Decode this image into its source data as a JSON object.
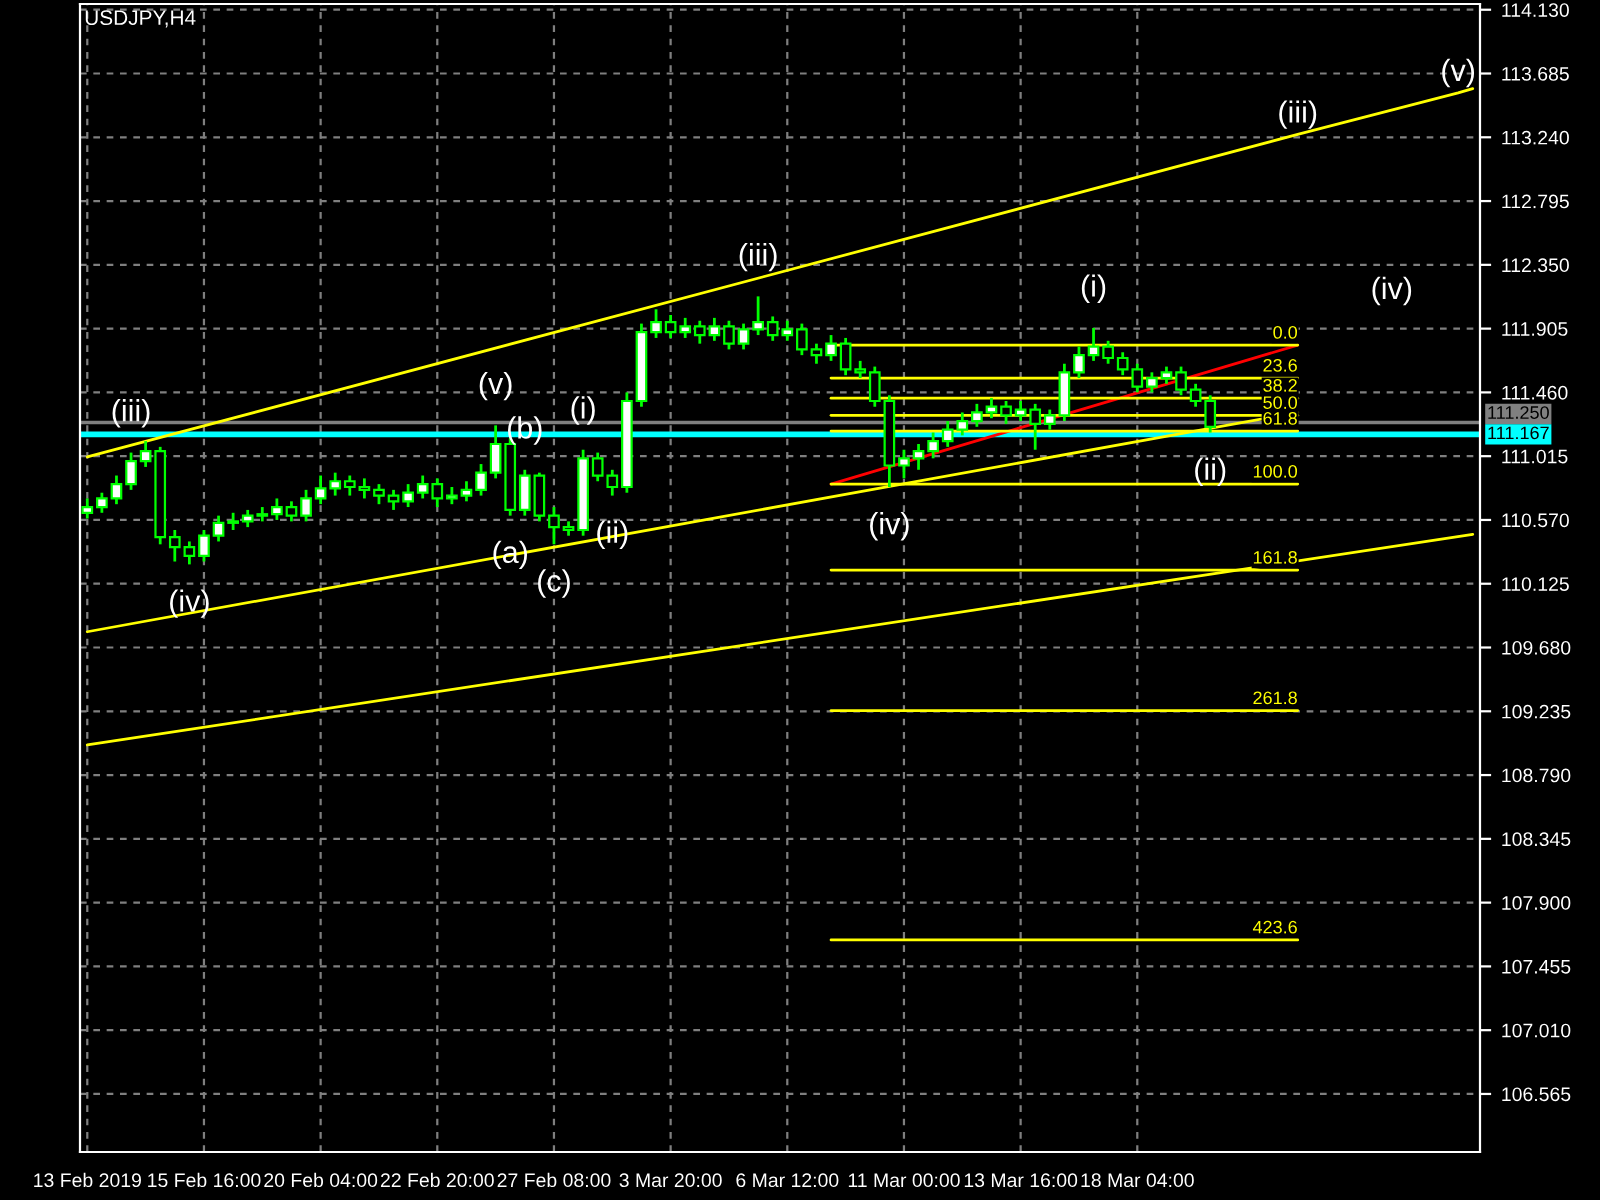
{
  "chart_data": {
    "type": "candlestick",
    "title": "USDJPY,H4",
    "categories": [
      "13 Feb 2019",
      null,
      null,
      null,
      null,
      null,
      null,
      null,
      "15 Feb 16:00",
      null,
      null,
      null,
      null,
      null,
      null,
      null,
      "20 Feb 04:00",
      null,
      null,
      null,
      null,
      null,
      null,
      null,
      "22 Feb 20:00",
      null,
      null,
      null,
      null,
      null,
      null,
      null,
      "27 Feb 08:00",
      null,
      null,
      null,
      null,
      null,
      null,
      null,
      "3 Mar 20:00",
      null,
      null,
      null,
      null,
      null,
      null,
      null,
      "6 Mar 12:00",
      null,
      null,
      null,
      null,
      null,
      null,
      null,
      "11 Mar 00:00",
      null,
      null,
      null,
      null,
      null,
      null,
      null,
      "13 Mar 16:00",
      null,
      null,
      null,
      null,
      null,
      null,
      null,
      "18 Mar 04:00",
      null,
      null,
      null,
      null,
      null,
      null,
      null,
      null,
      null,
      null,
      null,
      null,
      null,
      null,
      null,
      null,
      null,
      null,
      null,
      null,
      null,
      null,
      null
    ],
    "ohlc": [
      [
        110.62,
        110.72,
        110.58,
        110.66
      ],
      [
        110.66,
        110.76,
        110.62,
        110.72
      ],
      [
        110.72,
        110.88,
        110.68,
        110.82
      ],
      [
        110.82,
        111.04,
        110.78,
        110.98
      ],
      [
        110.98,
        111.12,
        110.94,
        111.05
      ],
      [
        111.05,
        111.08,
        110.4,
        110.45
      ],
      [
        110.45,
        110.5,
        110.28,
        110.38
      ],
      [
        110.38,
        110.42,
        110.26,
        110.32
      ],
      [
        110.32,
        110.5,
        110.28,
        110.46
      ],
      [
        110.46,
        110.6,
        110.42,
        110.55
      ],
      [
        110.55,
        110.62,
        110.5,
        110.56
      ],
      [
        110.56,
        110.64,
        110.52,
        110.6
      ],
      [
        110.6,
        110.66,
        110.56,
        110.61
      ],
      [
        110.61,
        110.72,
        110.57,
        110.66
      ],
      [
        110.66,
        110.7,
        110.56,
        110.6
      ],
      [
        110.6,
        110.78,
        110.56,
        110.72
      ],
      [
        110.72,
        110.88,
        110.68,
        110.79
      ],
      [
        110.79,
        110.9,
        110.74,
        110.84
      ],
      [
        110.84,
        110.88,
        110.74,
        110.8
      ],
      [
        110.8,
        110.86,
        110.72,
        110.78
      ],
      [
        110.78,
        110.82,
        110.68,
        110.74
      ],
      [
        110.74,
        110.78,
        110.64,
        110.7
      ],
      [
        110.7,
        110.82,
        110.66,
        110.76
      ],
      [
        110.76,
        110.88,
        110.72,
        110.82
      ],
      [
        110.82,
        110.86,
        110.66,
        110.72
      ],
      [
        110.72,
        110.8,
        110.68,
        110.74
      ],
      [
        110.74,
        110.84,
        110.7,
        110.78
      ],
      [
        110.78,
        110.96,
        110.74,
        110.9
      ],
      [
        110.9,
        111.23,
        110.86,
        111.1
      ],
      [
        111.1,
        111.14,
        110.6,
        110.64
      ],
      [
        110.64,
        110.92,
        110.6,
        110.88
      ],
      [
        110.88,
        110.9,
        110.56,
        110.6
      ],
      [
        110.6,
        110.66,
        110.4,
        110.52
      ],
      [
        110.52,
        110.56,
        110.46,
        110.5
      ],
      [
        110.5,
        111.06,
        110.46,
        111.0
      ],
      [
        111.0,
        111.04,
        110.84,
        110.88
      ],
      [
        110.88,
        110.92,
        110.74,
        110.8
      ],
      [
        110.8,
        111.46,
        110.76,
        111.4
      ],
      [
        111.4,
        111.94,
        111.36,
        111.88
      ],
      [
        111.88,
        112.04,
        111.84,
        111.95
      ],
      [
        111.95,
        112.0,
        111.84,
        111.88
      ],
      [
        111.88,
        111.98,
        111.84,
        111.92
      ],
      [
        111.92,
        111.96,
        111.8,
        111.86
      ],
      [
        111.86,
        111.98,
        111.82,
        111.92
      ],
      [
        111.92,
        111.96,
        111.76,
        111.8
      ],
      [
        111.8,
        111.94,
        111.76,
        111.9
      ],
      [
        111.9,
        112.13,
        111.86,
        111.95
      ],
      [
        111.95,
        111.99,
        111.82,
        111.86
      ],
      [
        111.86,
        111.96,
        111.82,
        111.9
      ],
      [
        111.9,
        111.94,
        111.72,
        111.76
      ],
      [
        111.76,
        111.8,
        111.66,
        111.72
      ],
      [
        111.72,
        111.86,
        111.68,
        111.8
      ],
      [
        111.8,
        111.84,
        111.58,
        111.62
      ],
      [
        111.62,
        111.68,
        111.56,
        111.6
      ],
      [
        111.6,
        111.64,
        111.36,
        111.4
      ],
      [
        111.4,
        111.44,
        110.8,
        110.95
      ],
      [
        110.95,
        111.06,
        110.86,
        111.0
      ],
      [
        111.0,
        111.1,
        110.92,
        111.05
      ],
      [
        111.05,
        111.18,
        111.0,
        111.12
      ],
      [
        111.12,
        111.26,
        111.08,
        111.2
      ],
      [
        111.2,
        111.32,
        111.16,
        111.26
      ],
      [
        111.26,
        111.38,
        111.22,
        111.32
      ],
      [
        111.32,
        111.42,
        111.28,
        111.36
      ],
      [
        111.36,
        111.4,
        111.24,
        111.3
      ],
      [
        111.3,
        111.4,
        111.26,
        111.34
      ],
      [
        111.34,
        111.38,
        111.06,
        111.24
      ],
      [
        111.24,
        111.34,
        111.2,
        111.3
      ],
      [
        111.3,
        111.66,
        111.26,
        111.6
      ],
      [
        111.6,
        111.78,
        111.56,
        111.72
      ],
      [
        111.72,
        111.91,
        111.68,
        111.78
      ],
      [
        111.78,
        111.82,
        111.66,
        111.7
      ],
      [
        111.7,
        111.74,
        111.58,
        111.62
      ],
      [
        111.62,
        111.66,
        111.46,
        111.5
      ],
      [
        111.5,
        111.6,
        111.46,
        111.56
      ],
      [
        111.56,
        111.64,
        111.52,
        111.6
      ],
      [
        111.6,
        111.64,
        111.44,
        111.48
      ],
      [
        111.48,
        111.52,
        111.36,
        111.4
      ],
      [
        111.4,
        111.44,
        111.18,
        111.22
      ],
      null,
      null,
      null,
      null,
      null,
      null,
      null,
      null,
      null,
      null,
      null,
      null,
      null,
      null,
      null,
      null,
      null,
      null
    ],
    "value_labels": [
      null,
      null,
      null,
      "(iii)",
      null,
      null,
      null,
      "(iv)",
      null,
      null,
      null,
      null,
      null,
      null,
      null,
      null,
      null,
      null,
      null,
      null,
      null,
      null,
      null,
      null,
      null,
      null,
      null,
      null,
      "(v)",
      "(a)",
      "(b)",
      null,
      "(c)",
      null,
      "(i)",
      null,
      "(ii)",
      null,
      null,
      null,
      null,
      null,
      null,
      null,
      null,
      null,
      "(iii)",
      null,
      null,
      null,
      null,
      null,
      null,
      null,
      null,
      "(iv)",
      null,
      null,
      null,
      null,
      null,
      null,
      null,
      null,
      null,
      null,
      null,
      null,
      null,
      "(i)",
      null,
      null,
      null,
      null,
      null,
      null,
      null,
      "(ii)",
      null,
      null,
      null,
      null,
      null,
      null,
      null,
      null,
      null,
      null,
      null,
      null,
      null,
      null,
      null,
      null,
      null,
      null
    ],
    "series": [
      {
        "type": "line",
        "color": "#ffff00",
        "values": [
          111.01,
          null,
          null,
          null,
          null,
          null,
          null,
          null,
          null,
          null,
          null,
          null,
          null,
          null,
          null,
          null,
          null,
          null,
          null,
          null,
          null,
          null,
          null,
          null,
          null,
          null,
          null,
          null,
          null,
          null,
          null,
          null,
          null,
          null,
          null,
          null,
          null,
          null,
          null,
          null,
          null,
          null,
          null,
          null,
          null,
          null,
          null,
          null,
          null,
          null,
          null,
          null,
          null,
          null,
          null,
          null,
          null,
          null,
          null,
          null,
          null,
          null,
          null,
          null,
          null,
          null,
          null,
          null,
          null,
          null,
          null,
          null,
          null,
          null,
          null,
          null,
          null,
          null,
          null,
          null,
          null,
          null,
          null,
          113.26,
          null,
          null,
          null,
          null,
          null,
          null,
          null,
          null,
          null,
          null,
          113.55,
          113.58
        ],
        "value_labels": [
          null,
          null,
          null,
          null,
          null,
          null,
          null,
          null,
          null,
          null,
          null,
          null,
          null,
          null,
          null,
          null,
          null,
          null,
          null,
          null,
          null,
          null,
          null,
          null,
          null,
          null,
          null,
          null,
          null,
          null,
          null,
          null,
          null,
          null,
          null,
          null,
          null,
          null,
          null,
          null,
          null,
          null,
          null,
          null,
          null,
          null,
          null,
          null,
          null,
          null,
          null,
          null,
          null,
          null,
          null,
          null,
          null,
          null,
          null,
          null,
          null,
          null,
          null,
          null,
          null,
          null,
          null,
          null,
          null,
          null,
          null,
          null,
          null,
          null,
          null,
          null,
          null,
          null,
          null,
          null,
          null,
          null,
          null,
          "(iii)",
          null,
          null,
          null,
          null,
          null,
          null,
          null,
          null,
          null,
          null,
          "(v)",
          null
        ]
      },
      {
        "type": "line",
        "color": "#ffff00",
        "values": [
          109.79,
          null,
          null,
          null,
          null,
          null,
          null,
          null,
          null,
          null,
          null,
          null,
          null,
          null,
          null,
          null,
          null,
          null,
          null,
          null,
          null,
          null,
          null,
          null,
          null,
          null,
          null,
          null,
          null,
          null,
          null,
          null,
          null,
          null,
          null,
          null,
          null,
          null,
          null,
          null,
          null,
          null,
          null,
          null,
          null,
          null,
          null,
          null,
          null,
          null,
          null,
          null,
          null,
          null,
          null,
          null,
          null,
          null,
          null,
          null,
          null,
          null,
          null,
          null,
          null,
          null,
          null,
          null,
          null,
          null,
          null,
          null,
          null,
          null,
          null,
          null,
          null,
          null,
          null,
          null,
          null,
          null,
          null,
          111.32,
          null,
          null,
          null,
          null,
          null,
          null,
          null,
          null,
          null,
          null,
          null,
          null
        ]
      },
      {
        "type": "line",
        "color": "#ffff00",
        "values": [
          109.0,
          null,
          null,
          null,
          null,
          null,
          null,
          null,
          null,
          null,
          null,
          null,
          null,
          null,
          null,
          null,
          null,
          null,
          null,
          null,
          null,
          null,
          null,
          null,
          null,
          null,
          null,
          null,
          null,
          null,
          null,
          null,
          null,
          null,
          null,
          null,
          null,
          null,
          null,
          null,
          null,
          null,
          null,
          null,
          null,
          null,
          null,
          null,
          null,
          null,
          null,
          null,
          null,
          null,
          null,
          null,
          null,
          null,
          null,
          null,
          null,
          null,
          null,
          null,
          null,
          null,
          null,
          null,
          null,
          null,
          null,
          null,
          null,
          null,
          null,
          null,
          null,
          null,
          null,
          null,
          null,
          null,
          null,
          null,
          null,
          null,
          null,
          null,
          null,
          null,
          null,
          null,
          null,
          null,
          null,
          110.47
        ]
      },
      {
        "type": "line",
        "color": "#ff0000",
        "values": [
          null,
          null,
          null,
          null,
          null,
          null,
          null,
          null,
          null,
          null,
          null,
          null,
          null,
          null,
          null,
          null,
          null,
          null,
          null,
          null,
          null,
          null,
          null,
          null,
          null,
          null,
          null,
          null,
          null,
          null,
          null,
          null,
          null,
          null,
          null,
          null,
          null,
          null,
          null,
          null,
          null,
          null,
          null,
          null,
          null,
          null,
          null,
          null,
          null,
          null,
          null,
          110.82,
          null,
          null,
          null,
          null,
          null,
          null,
          null,
          null,
          null,
          null,
          null,
          null,
          null,
          null,
          null,
          null,
          null,
          null,
          null,
          null,
          null,
          null,
          null,
          null,
          null,
          null,
          null,
          null,
          null,
          null,
          null,
          111.79,
          null,
          null,
          null,
          null,
          null,
          null,
          null,
          null,
          null,
          null,
          null,
          null
        ]
      },
      {
        "type": "line",
        "color": "#ffff00",
        "name": "0.0",
        "values": [
          null,
          null,
          null,
          null,
          null,
          null,
          null,
          null,
          null,
          null,
          null,
          null,
          null,
          null,
          null,
          null,
          null,
          null,
          null,
          null,
          null,
          null,
          null,
          null,
          null,
          null,
          null,
          null,
          null,
          null,
          null,
          null,
          null,
          null,
          null,
          null,
          null,
          null,
          null,
          null,
          null,
          null,
          null,
          null,
          null,
          null,
          null,
          null,
          null,
          null,
          null,
          111.79,
          null,
          null,
          null,
          null,
          null,
          null,
          null,
          null,
          null,
          null,
          null,
          null,
          null,
          null,
          null,
          null,
          null,
          null,
          null,
          null,
          null,
          null,
          null,
          null,
          null,
          null,
          null,
          null,
          null,
          null,
          null,
          111.79,
          null,
          null,
          null,
          null,
          null,
          null,
          null,
          null,
          null,
          null,
          null,
          null
        ]
      },
      {
        "type": "line",
        "color": "#ffff00",
        "name": "23.6",
        "values": [
          null,
          null,
          null,
          null,
          null,
          null,
          null,
          null,
          null,
          null,
          null,
          null,
          null,
          null,
          null,
          null,
          null,
          null,
          null,
          null,
          null,
          null,
          null,
          null,
          null,
          null,
          null,
          null,
          null,
          null,
          null,
          null,
          null,
          null,
          null,
          null,
          null,
          null,
          null,
          null,
          null,
          null,
          null,
          null,
          null,
          null,
          null,
          null,
          null,
          null,
          null,
          111.56,
          null,
          null,
          null,
          null,
          null,
          null,
          null,
          null,
          null,
          null,
          null,
          null,
          null,
          null,
          null,
          null,
          null,
          null,
          null,
          null,
          null,
          null,
          null,
          null,
          null,
          null,
          null,
          null,
          null,
          null,
          null,
          111.56,
          null,
          null,
          null,
          null,
          null,
          null,
          null,
          null,
          null,
          null,
          null,
          null
        ]
      },
      {
        "type": "line",
        "color": "#ffff00",
        "name": "38.2",
        "values": [
          null,
          null,
          null,
          null,
          null,
          null,
          null,
          null,
          null,
          null,
          null,
          null,
          null,
          null,
          null,
          null,
          null,
          null,
          null,
          null,
          null,
          null,
          null,
          null,
          null,
          null,
          null,
          null,
          null,
          null,
          null,
          null,
          null,
          null,
          null,
          null,
          null,
          null,
          null,
          null,
          null,
          null,
          null,
          null,
          null,
          null,
          null,
          null,
          null,
          null,
          null,
          111.42,
          null,
          null,
          null,
          null,
          null,
          null,
          null,
          null,
          null,
          null,
          null,
          null,
          null,
          null,
          null,
          null,
          null,
          null,
          null,
          null,
          null,
          null,
          null,
          null,
          null,
          null,
          null,
          null,
          null,
          null,
          null,
          111.42,
          null,
          null,
          null,
          null,
          null,
          null,
          null,
          null,
          null,
          null,
          null,
          null
        ]
      },
      {
        "type": "line",
        "color": "#ffff00",
        "name": "50.0",
        "values": [
          null,
          null,
          null,
          null,
          null,
          null,
          null,
          null,
          null,
          null,
          null,
          null,
          null,
          null,
          null,
          null,
          null,
          null,
          null,
          null,
          null,
          null,
          null,
          null,
          null,
          null,
          null,
          null,
          null,
          null,
          null,
          null,
          null,
          null,
          null,
          null,
          null,
          null,
          null,
          null,
          null,
          null,
          null,
          null,
          null,
          null,
          null,
          null,
          null,
          null,
          null,
          111.3,
          null,
          null,
          null,
          null,
          null,
          null,
          null,
          null,
          null,
          null,
          null,
          null,
          null,
          null,
          null,
          null,
          null,
          null,
          null,
          null,
          null,
          null,
          null,
          null,
          null,
          null,
          null,
          null,
          null,
          null,
          null,
          111.3,
          null,
          null,
          null,
          null,
          null,
          null,
          null,
          null,
          null,
          null,
          null,
          null
        ]
      },
      {
        "type": "line",
        "color": "#ffff00",
        "name": "61.8",
        "values": [
          null,
          null,
          null,
          null,
          null,
          null,
          null,
          null,
          null,
          null,
          null,
          null,
          null,
          null,
          null,
          null,
          null,
          null,
          null,
          null,
          null,
          null,
          null,
          null,
          null,
          null,
          null,
          null,
          null,
          null,
          null,
          null,
          null,
          null,
          null,
          null,
          null,
          null,
          null,
          null,
          null,
          null,
          null,
          null,
          null,
          null,
          null,
          null,
          null,
          null,
          null,
          111.19,
          null,
          null,
          null,
          null,
          null,
          null,
          null,
          null,
          null,
          null,
          null,
          null,
          null,
          null,
          null,
          null,
          null,
          null,
          null,
          null,
          null,
          null,
          null,
          null,
          null,
          null,
          null,
          null,
          null,
          null,
          null,
          111.19,
          null,
          null,
          null,
          null,
          null,
          null,
          null,
          null,
          null,
          null,
          null,
          null
        ]
      },
      {
        "type": "line",
        "color": "#ffff00",
        "name": "100.0",
        "values": [
          null,
          null,
          null,
          null,
          null,
          null,
          null,
          null,
          null,
          null,
          null,
          null,
          null,
          null,
          null,
          null,
          null,
          null,
          null,
          null,
          null,
          null,
          null,
          null,
          null,
          null,
          null,
          null,
          null,
          null,
          null,
          null,
          null,
          null,
          null,
          null,
          null,
          null,
          null,
          null,
          null,
          null,
          null,
          null,
          null,
          null,
          null,
          null,
          null,
          null,
          null,
          110.82,
          null,
          null,
          null,
          null,
          null,
          null,
          null,
          null,
          null,
          null,
          null,
          null,
          null,
          null,
          null,
          null,
          null,
          null,
          null,
          null,
          null,
          null,
          null,
          null,
          null,
          null,
          null,
          null,
          null,
          null,
          null,
          110.82,
          null,
          null,
          null,
          null,
          null,
          null,
          null,
          null,
          null,
          null,
          null,
          null
        ]
      },
      {
        "type": "line",
        "color": "#ffff00",
        "name": "161.8",
        "values": [
          null,
          null,
          null,
          null,
          null,
          null,
          null,
          null,
          null,
          null,
          null,
          null,
          null,
          null,
          null,
          null,
          null,
          null,
          null,
          null,
          null,
          null,
          null,
          null,
          null,
          null,
          null,
          null,
          null,
          null,
          null,
          null,
          null,
          null,
          null,
          null,
          null,
          null,
          null,
          null,
          null,
          null,
          null,
          null,
          null,
          null,
          null,
          null,
          null,
          null,
          null,
          110.22,
          null,
          null,
          null,
          null,
          null,
          null,
          null,
          null,
          null,
          null,
          null,
          null,
          null,
          null,
          null,
          null,
          null,
          null,
          null,
          null,
          null,
          null,
          null,
          null,
          null,
          null,
          null,
          null,
          null,
          null,
          null,
          110.22,
          null,
          null,
          null,
          null,
          null,
          null,
          null,
          null,
          null,
          null,
          null,
          null
        ]
      },
      {
        "type": "line",
        "color": "#ffff00",
        "name": "261.8",
        "values": [
          null,
          null,
          null,
          null,
          null,
          null,
          null,
          null,
          null,
          null,
          null,
          null,
          null,
          null,
          null,
          null,
          null,
          null,
          null,
          null,
          null,
          null,
          null,
          null,
          null,
          null,
          null,
          null,
          null,
          null,
          null,
          null,
          null,
          null,
          null,
          null,
          null,
          null,
          null,
          null,
          null,
          null,
          null,
          null,
          null,
          null,
          null,
          null,
          null,
          null,
          null,
          109.24,
          null,
          null,
          null,
          null,
          null,
          null,
          null,
          null,
          null,
          null,
          null,
          null,
          null,
          null,
          null,
          null,
          null,
          null,
          null,
          null,
          null,
          null,
          null,
          null,
          null,
          null,
          null,
          null,
          null,
          null,
          null,
          109.24,
          null,
          null,
          null,
          null,
          null,
          null,
          null,
          null,
          null,
          null,
          null,
          null
        ]
      },
      {
        "type": "line",
        "color": "#ffff00",
        "name": "423.6",
        "values": [
          null,
          null,
          null,
          null,
          null,
          null,
          null,
          null,
          null,
          null,
          null,
          null,
          null,
          null,
          null,
          null,
          null,
          null,
          null,
          null,
          null,
          null,
          null,
          null,
          null,
          null,
          null,
          null,
          null,
          null,
          null,
          null,
          null,
          null,
          null,
          null,
          null,
          null,
          null,
          null,
          null,
          null,
          null,
          null,
          null,
          null,
          null,
          null,
          null,
          null,
          null,
          107.64,
          null,
          null,
          null,
          null,
          null,
          null,
          null,
          null,
          null,
          null,
          null,
          null,
          null,
          null,
          null,
          null,
          null,
          null,
          null,
          null,
          null,
          null,
          null,
          null,
          null,
          null,
          null,
          null,
          null,
          null,
          null,
          107.64,
          null,
          null,
          null,
          null,
          null,
          null,
          null,
          null,
          null,
          null,
          null,
          null
        ]
      }
    ],
    "ref_lines": [
      {
        "axis": "y",
        "value": 111.25,
        "label": "111.250",
        "color": "#808080"
      },
      {
        "axis": "y",
        "value": 111.167,
        "label": "111.167",
        "color": "#00ffff"
      }
    ],
    "annotations": [
      "(iv)"
    ],
    "ylim": [
      106.16,
      114.17
    ],
    "yticks": [
      {
        "value": 114.13,
        "label": "114.130"
      },
      {
        "value": 113.685,
        "label": "113.685"
      },
      {
        "value": 113.24,
        "label": "113.240"
      },
      {
        "value": 112.795,
        "label": "112.795"
      },
      {
        "value": 112.35,
        "label": "112.350"
      },
      {
        "value": 111.905,
        "label": "111.905"
      },
      {
        "value": 111.46,
        "label": "111.460"
      },
      {
        "value": 111.015,
        "label": "111.015"
      },
      {
        "value": 110.57,
        "label": "110.570"
      },
      {
        "value": 110.125,
        "label": "110.125"
      },
      {
        "value": 109.68,
        "label": "109.680"
      },
      {
        "value": 109.235,
        "label": "109.235"
      },
      {
        "value": 108.79,
        "label": "108.790"
      },
      {
        "value": 108.345,
        "label": "108.345"
      },
      {
        "value": 107.9,
        "label": "107.900"
      },
      {
        "value": 107.455,
        "label": "107.455"
      },
      {
        "value": 107.01,
        "label": "107.010"
      },
      {
        "value": 106.565,
        "label": "106.565"
      }
    ],
    "grid": true,
    "legend": false
  }
}
